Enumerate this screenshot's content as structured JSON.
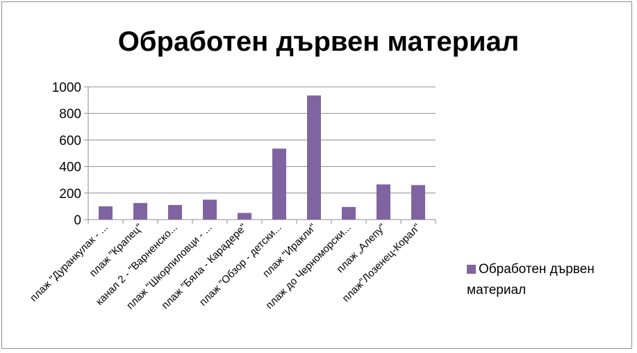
{
  "chart_data": {
    "type": "bar",
    "title": "Обработен дървен материал",
    "categories": [
      "плаж \"Дуранкулак - ...",
      "плаж \"Крапец\"",
      "канал 2 - \"Варненско...",
      "плаж \"Шкорпиловци - ...",
      "плаж \"Бяла - Карадере\"",
      "плаж \"Обзор - детски...",
      "плаж \"Иракли\"",
      "плаж до Черноморски...",
      "плаж „Алепу\"",
      "плаж\"Лозенец-Корал\""
    ],
    "series": [
      {
        "name": "Обработен дървен материал",
        "values": [
          100,
          125,
          110,
          150,
          50,
          535,
          935,
          95,
          265,
          260
        ],
        "color": "#8064a2"
      }
    ],
    "y_ticks": [
      "0",
      "200",
      "400",
      "600",
      "800",
      "1000"
    ],
    "ylim": [
      0,
      1000
    ],
    "grid": true,
    "legend_position": "right"
  }
}
